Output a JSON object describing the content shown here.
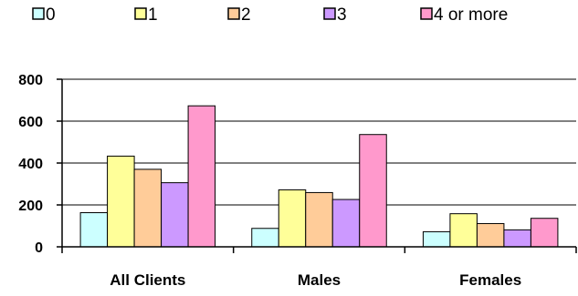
{
  "chart_data": {
    "type": "bar",
    "title": "",
    "xlabel": "",
    "ylabel": "",
    "categories": [
      "All Clients",
      "Males",
      "Females"
    ],
    "series": [
      {
        "name": "0",
        "values": [
          163,
          88,
          72
        ],
        "color": "#ccffff"
      },
      {
        "name": "1",
        "values": [
          433,
          272,
          158
        ],
        "color": "#ffff99"
      },
      {
        "name": "2",
        "values": [
          370,
          259,
          111
        ],
        "color": "#ffcc99"
      },
      {
        "name": "3",
        "values": [
          306,
          226,
          81
        ],
        "color": "#cc99ff"
      },
      {
        "name": "4 or more",
        "values": [
          673,
          536,
          136
        ],
        "color": "#ff99cc"
      }
    ],
    "ylim": [
      0,
      800
    ],
    "yticks": [
      "0",
      "200",
      "400",
      "600",
      "800"
    ],
    "grid": "horizontal",
    "legend_position": "top"
  }
}
